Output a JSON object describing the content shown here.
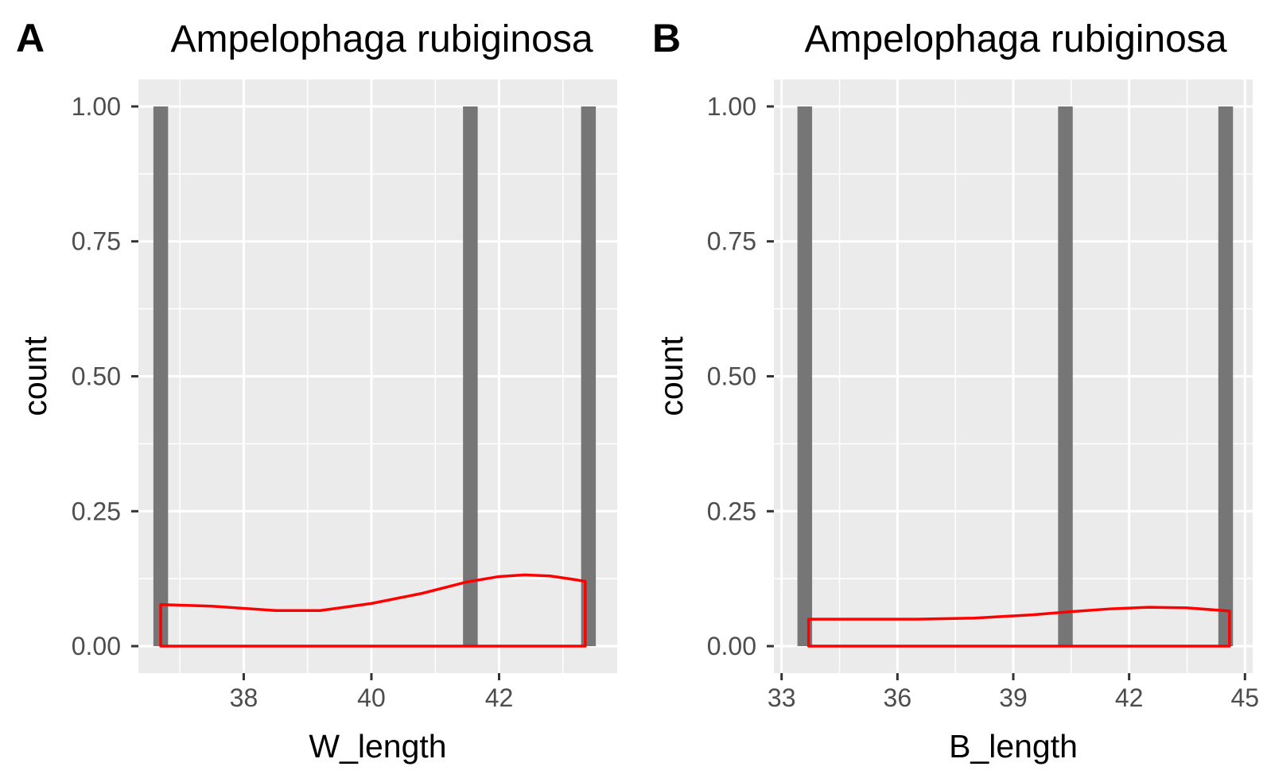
{
  "chart_data": [
    {
      "type": "histogram",
      "panel_tag": "A",
      "title": "Ampelophaga rubiginosa",
      "xlabel": "W_length",
      "ylabel": "count",
      "xlim": [
        36.35,
        43.85
      ],
      "ylim": [
        -0.05,
        1.05
      ],
      "x_ticks": [
        38,
        40,
        42
      ],
      "x_tick_labels": [
        "38",
        "40",
        "42"
      ],
      "y_ticks": [
        0,
        0.25,
        0.5,
        0.75,
        1
      ],
      "y_tick_labels": [
        "0.00",
        "0.25",
        "0.50",
        "0.75",
        "1.00"
      ],
      "bar_width": 0.23,
      "bars": [
        {
          "x": 36.7,
          "count": 1
        },
        {
          "x": 41.55,
          "count": 1
        },
        {
          "x": 43.4,
          "count": 1
        }
      ],
      "density": {
        "x": [
          36.7,
          37.5,
          38.5,
          39.2,
          40.0,
          40.8,
          41.5,
          42.0,
          42.4,
          42.8,
          43.2,
          43.35
        ],
        "y": [
          0.077,
          0.074,
          0.066,
          0.066,
          0.079,
          0.098,
          0.119,
          0.129,
          0.132,
          0.13,
          0.123,
          0.12
        ]
      },
      "bar_color": "#767676",
      "density_color": "#ff0000",
      "panel_bg": "#ebebeb",
      "grid": true
    },
    {
      "type": "histogram",
      "panel_tag": "B",
      "title": "Ampelophaga rubiginosa",
      "xlabel": "B_length",
      "ylabel": "count",
      "xlim": [
        32.8,
        45.2
      ],
      "ylim": [
        -0.05,
        1.05
      ],
      "x_ticks": [
        33,
        36,
        39,
        42,
        45
      ],
      "x_tick_labels": [
        "33",
        "36",
        "39",
        "42",
        "45"
      ],
      "y_ticks": [
        0,
        0.25,
        0.5,
        0.75,
        1
      ],
      "y_tick_labels": [
        "0.00",
        "0.25",
        "0.50",
        "0.75",
        "1.00"
      ],
      "bar_width": 0.38,
      "bars": [
        {
          "x": 33.6,
          "count": 1
        },
        {
          "x": 40.35,
          "count": 1
        },
        {
          "x": 44.5,
          "count": 1
        }
      ],
      "density": {
        "x": [
          33.7,
          35.0,
          36.5,
          38.0,
          39.5,
          40.5,
          41.5,
          42.5,
          43.5,
          44.6
        ],
        "y": [
          0.05,
          0.05,
          0.05,
          0.052,
          0.058,
          0.064,
          0.069,
          0.072,
          0.071,
          0.065
        ]
      },
      "bar_color": "#767676",
      "density_color": "#ff0000",
      "panel_bg": "#ebebeb",
      "grid": true
    }
  ]
}
